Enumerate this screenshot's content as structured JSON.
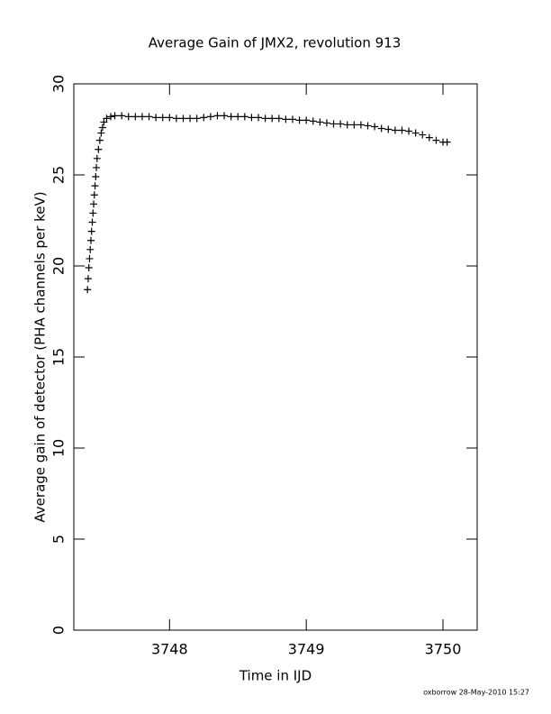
{
  "chart_data": {
    "type": "scatter",
    "title": "Average Gain of JMX2, revolution 913",
    "x_label": "Time in IJD",
    "y_label": "Average gain of detector (PHA channels per keV)",
    "annotations": [
      "oxborrow 28-May-2010 15:27"
    ],
    "xlim": [
      3747.3,
      3750.25
    ],
    "xticks": [
      3748,
      3749,
      3750
    ],
    "ylim": [
      0,
      30
    ],
    "yticks": [
      0,
      5,
      10,
      15,
      20,
      25,
      30
    ],
    "marker": "plus",
    "color": "#000000",
    "series": [
      {
        "x": [
          3747.4,
          3747.405,
          3747.41,
          3747.415,
          3747.42,
          3747.425,
          3747.43,
          3747.435,
          3747.44,
          3747.445,
          3747.45,
          3747.455,
          3747.46,
          3747.465,
          3747.47,
          3747.48,
          3747.49,
          3747.5,
          3747.51,
          3747.52,
          3747.54,
          3747.57,
          3747.6,
          3747.65,
          3747.7,
          3747.75,
          3747.8,
          3747.85,
          3747.9,
          3747.95,
          3748.0,
          3748.05,
          3748.1,
          3748.15,
          3748.2,
          3748.25,
          3748.3,
          3748.35,
          3748.4,
          3748.45,
          3748.5,
          3748.55,
          3748.6,
          3748.65,
          3748.7,
          3748.75,
          3748.8,
          3748.85,
          3748.9,
          3748.95,
          3749.0,
          3749.05,
          3749.1,
          3749.15,
          3749.2,
          3749.25,
          3749.3,
          3749.35,
          3749.4,
          3749.45,
          3749.5,
          3749.55,
          3749.6,
          3749.65,
          3749.7,
          3749.75,
          3749.8,
          3749.85,
          3749.9,
          3749.95,
          3750.0,
          3750.03
        ],
        "values": [
          18.7,
          19.3,
          19.9,
          20.4,
          20.9,
          21.4,
          21.9,
          22.4,
          22.9,
          23.4,
          23.9,
          24.4,
          24.9,
          25.4,
          25.9,
          26.4,
          26.9,
          27.3,
          27.6,
          27.9,
          28.1,
          28.2,
          28.25,
          28.25,
          28.2,
          28.2,
          28.2,
          28.2,
          28.15,
          28.15,
          28.15,
          28.1,
          28.1,
          28.1,
          28.1,
          28.15,
          28.2,
          28.25,
          28.25,
          28.2,
          28.2,
          28.2,
          28.15,
          28.15,
          28.1,
          28.1,
          28.1,
          28.05,
          28.05,
          28.0,
          28.0,
          27.95,
          27.9,
          27.85,
          27.8,
          27.8,
          27.75,
          27.75,
          27.75,
          27.7,
          27.65,
          27.55,
          27.5,
          27.45,
          27.45,
          27.4,
          27.3,
          27.2,
          27.05,
          26.9,
          26.8,
          26.8
        ]
      }
    ]
  }
}
